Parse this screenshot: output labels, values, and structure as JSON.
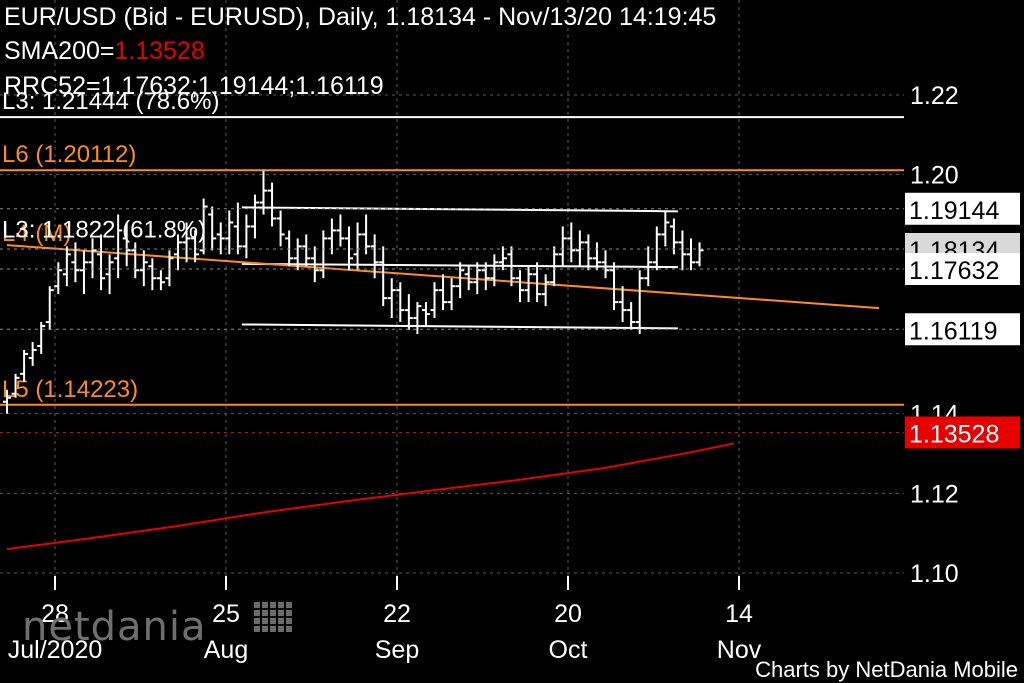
{
  "header": {
    "line1": "EUR/USD (Bid - EURUSD),  Daily, 1.18134 - Nov/13/20 14:19:45",
    "sma_label": "SMA200=",
    "sma_value": "1.13528",
    "rrc_label": "RRC52=1.17632;1.19144;1.16119"
  },
  "footer": "Charts by NetDania Mobile",
  "watermark": "netdania",
  "colors": {
    "background": "#000000",
    "bars": "#ffffff",
    "level": "#ff8c1a",
    "sma": "#e60000",
    "channel": "#ffffff"
  },
  "chart_data": {
    "type": "ohlc",
    "symbol": "EUR/USD",
    "interval": "Daily",
    "ylim": [
      1.1,
      1.22
    ],
    "y_ticks": [
      "1.22",
      "1.20",
      "1.14",
      "1.12",
      "1.10"
    ],
    "x_ticks": [
      {
        "day": "28",
        "month": "Jul/2020",
        "index": 0
      },
      {
        "day": "25",
        "month": "Aug",
        "index": 20
      },
      {
        "day": "22",
        "month": "Sep",
        "index": 40
      },
      {
        "day": "20",
        "month": "Oct",
        "index": 60
      },
      {
        "day": "14",
        "month": "Nov",
        "index": 80
      }
    ],
    "price_boxes": [
      {
        "label": "1.19144",
        "value": 1.19144,
        "style": "white"
      },
      {
        "label": "1.18134",
        "value": 1.18134,
        "style": "gray"
      },
      {
        "label": "1.17632",
        "value": 1.17632,
        "style": "white"
      },
      {
        "label": "1.16119",
        "value": 1.16119,
        "style": "white"
      },
      {
        "label": "1.13528",
        "value": 1.13528,
        "style": "red"
      }
    ],
    "levels": [
      {
        "label": "L3: 1.21444 (78.6%)",
        "value": 1.21444,
        "color": "#ffffff"
      },
      {
        "label": "L6 (1.20112)",
        "value": 1.20112,
        "color": "#ff8c1a"
      },
      {
        "label": "L4 (M)",
        "value": 1.18134,
        "color": "#ff8c1a"
      },
      {
        "label": "L3: 1.1822 (61.8%)",
        "value": 1.1822,
        "color": "#ffffff"
      },
      {
        "label": "L5 (1.14223)",
        "value": 1.14223,
        "color": "#ff8c1a"
      }
    ],
    "channel": {
      "upper": [
        [
          27,
          1.1918
        ],
        [
          78,
          1.1908
        ]
      ],
      "middle": [
        [
          27,
          1.1776
        ],
        [
          78,
          1.1768
        ]
      ],
      "lower": [
        [
          27,
          1.1624
        ],
        [
          78,
          1.1614
        ]
      ]
    },
    "trendline": [
      [
        0,
        1.1823
      ],
      [
        102,
        1.1665
      ]
    ],
    "sma200": [
      [
        0,
        1.106
      ],
      [
        10,
        1.1088
      ],
      [
        20,
        1.1118
      ],
      [
        30,
        1.1152
      ],
      [
        40,
        1.1181
      ],
      [
        50,
        1.1208
      ],
      [
        60,
        1.1234
      ],
      [
        70,
        1.1264
      ],
      [
        80,
        1.1303
      ],
      [
        85,
        1.1325
      ]
    ],
    "ohlc": [
      [
        1.143,
        1.146,
        1.14,
        1.144
      ],
      [
        1.145,
        1.15,
        1.144,
        1.149
      ],
      [
        1.15,
        1.156,
        1.148,
        1.155
      ],
      [
        1.154,
        1.158,
        1.152,
        1.156
      ],
      [
        1.157,
        1.163,
        1.155,
        1.162
      ],
      [
        1.163,
        1.172,
        1.161,
        1.171
      ],
      [
        1.172,
        1.178,
        1.17,
        1.176
      ],
      [
        1.175,
        1.182,
        1.172,
        1.18
      ],
      [
        1.178,
        1.183,
        1.173,
        1.176
      ],
      [
        1.176,
        1.181,
        1.17,
        1.178
      ],
      [
        1.178,
        1.184,
        1.174,
        1.181
      ],
      [
        1.18,
        1.185,
        1.171,
        1.174
      ],
      [
        1.175,
        1.18,
        1.17,
        1.178
      ],
      [
        1.179,
        1.19,
        1.174,
        1.186
      ],
      [
        1.184,
        1.188,
        1.177,
        1.181
      ],
      [
        1.181,
        1.183,
        1.174,
        1.176
      ],
      [
        1.176,
        1.181,
        1.172,
        1.178
      ],
      [
        1.177,
        1.179,
        1.171,
        1.174
      ],
      [
        1.174,
        1.176,
        1.171,
        1.173
      ],
      [
        1.174,
        1.181,
        1.172,
        1.179
      ],
      [
        1.18,
        1.185,
        1.176,
        1.183
      ],
      [
        1.183,
        1.188,
        1.178,
        1.184
      ],
      [
        1.184,
        1.186,
        1.178,
        1.18
      ],
      [
        1.181,
        1.194,
        1.18,
        1.192
      ],
      [
        1.19,
        1.192,
        1.181,
        1.184
      ],
      [
        1.185,
        1.188,
        1.18,
        1.184
      ],
      [
        1.184,
        1.191,
        1.18,
        1.188
      ],
      [
        1.187,
        1.193,
        1.18,
        1.182
      ],
      [
        1.182,
        1.19,
        1.179,
        1.187
      ],
      [
        1.187,
        1.195,
        1.184,
        1.193
      ],
      [
        1.193,
        1.201,
        1.19,
        1.196
      ],
      [
        1.196,
        1.198,
        1.187,
        1.189
      ],
      [
        1.189,
        1.191,
        1.182,
        1.185
      ],
      [
        1.184,
        1.186,
        1.177,
        1.179
      ],
      [
        1.179,
        1.184,
        1.176,
        1.182
      ],
      [
        1.182,
        1.185,
        1.177,
        1.179
      ],
      [
        1.179,
        1.182,
        1.173,
        1.176
      ],
      [
        1.176,
        1.186,
        1.174,
        1.184
      ],
      [
        1.184,
        1.189,
        1.18,
        1.186
      ],
      [
        1.186,
        1.19,
        1.182,
        1.184
      ],
      [
        1.184,
        1.187,
        1.176,
        1.179
      ],
      [
        1.18,
        1.188,
        1.176,
        1.185
      ],
      [
        1.185,
        1.19,
        1.18,
        1.182
      ],
      [
        1.182,
        1.185,
        1.174,
        1.178
      ],
      [
        1.178,
        1.182,
        1.167,
        1.169
      ],
      [
        1.169,
        1.174,
        1.164,
        1.171
      ],
      [
        1.171,
        1.173,
        1.163,
        1.166
      ],
      [
        1.166,
        1.17,
        1.161,
        1.164
      ],
      [
        1.164,
        1.168,
        1.16,
        1.167
      ],
      [
        1.166,
        1.168,
        1.162,
        1.165
      ],
      [
        1.166,
        1.173,
        1.164,
        1.171
      ],
      [
        1.171,
        1.175,
        1.166,
        1.168
      ],
      [
        1.168,
        1.174,
        1.166,
        1.172
      ],
      [
        1.172,
        1.178,
        1.169,
        1.176
      ],
      [
        1.175,
        1.177,
        1.171,
        1.173
      ],
      [
        1.173,
        1.178,
        1.17,
        1.176
      ],
      [
        1.176,
        1.178,
        1.171,
        1.174
      ],
      [
        1.174,
        1.18,
        1.172,
        1.178
      ],
      [
        1.178,
        1.182,
        1.176,
        1.179
      ],
      [
        1.18,
        1.182,
        1.172,
        1.174
      ],
      [
        1.174,
        1.176,
        1.168,
        1.171
      ],
      [
        1.171,
        1.177,
        1.168,
        1.175
      ],
      [
        1.175,
        1.178,
        1.168,
        1.17
      ],
      [
        1.17,
        1.175,
        1.167,
        1.173
      ],
      [
        1.173,
        1.182,
        1.172,
        1.18
      ],
      [
        1.18,
        1.187,
        1.177,
        1.184
      ],
      [
        1.184,
        1.188,
        1.178,
        1.181
      ],
      [
        1.181,
        1.186,
        1.177,
        1.183
      ],
      [
        1.183,
        1.185,
        1.176,
        1.179
      ],
      [
        1.179,
        1.183,
        1.176,
        1.178
      ],
      [
        1.178,
        1.181,
        1.174,
        1.176
      ],
      [
        1.176,
        1.178,
        1.166,
        1.168
      ],
      [
        1.168,
        1.172,
        1.163,
        1.166
      ],
      [
        1.166,
        1.168,
        1.161,
        1.163
      ],
      [
        1.163,
        1.176,
        1.16,
        1.174
      ],
      [
        1.174,
        1.182,
        1.172,
        1.178
      ],
      [
        1.178,
        1.187,
        1.176,
        1.185
      ],
      [
        1.185,
        1.191,
        1.182,
        1.188
      ],
      [
        1.187,
        1.189,
        1.18,
        1.183
      ],
      [
        1.183,
        1.186,
        1.176,
        1.18
      ],
      [
        1.18,
        1.184,
        1.176,
        1.178
      ],
      [
        1.178,
        1.183,
        1.177,
        1.181
      ]
    ]
  }
}
